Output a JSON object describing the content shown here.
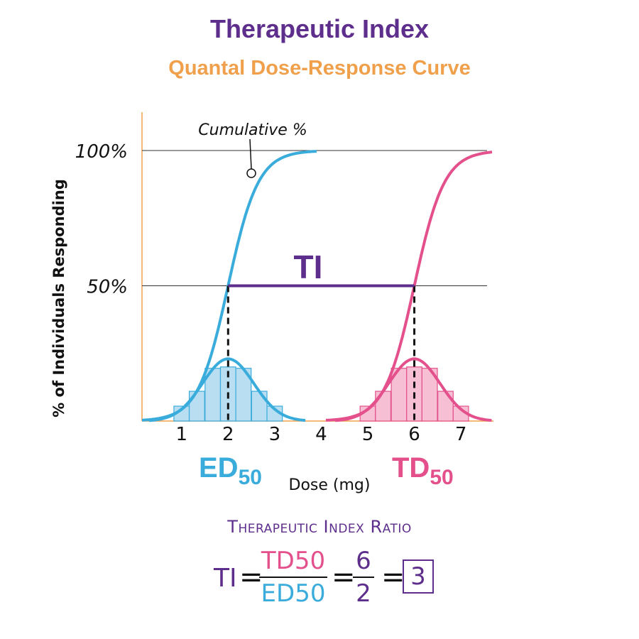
{
  "title": "Therapeutic Index",
  "subtitle": "Quantal Dose-Response Curve",
  "colors": {
    "purple": "#5e2e8c",
    "orange": "#f0a04b",
    "ed_blue": "#3aacdc",
    "td_pink": "#e3508b",
    "ed_fill": "#b9def2",
    "td_fill": "#f6bfd4"
  },
  "chart_data": {
    "type": "line",
    "xlabel": "Dose (mg)",
    "ylabel": "% of Individuals Responding",
    "x_ticks": [
      "1",
      "2",
      "3",
      "4",
      "5",
      "6",
      "7"
    ],
    "y_ticks": [
      "50%",
      "100%"
    ],
    "xlim": [
      0.15,
      7.7
    ],
    "ylim": [
      0,
      100
    ],
    "series": [
      {
        "name": "ED",
        "color": "#3aacdc",
        "midpoint": 2,
        "histogram_x": [
          1.0,
          1.33,
          1.67,
          2.0,
          2.33,
          2.67,
          3.0
        ],
        "histogram_pct": [
          5.5,
          11.0,
          19.5,
          20.0,
          19.5,
          11.0,
          5.5
        ]
      },
      {
        "name": "TD",
        "color": "#e3508b",
        "midpoint": 6,
        "histogram_x": [
          5.0,
          5.33,
          5.67,
          6.0,
          6.33,
          6.67,
          7.0
        ],
        "histogram_pct": [
          5.5,
          11.0,
          19.5,
          20.0,
          19.5,
          11.0,
          5.5
        ]
      }
    ],
    "annotations": {
      "cumulative": "Cumulative %",
      "ti": "TI",
      "ed_label": "ED",
      "td_label": "TD",
      "subscript": "50"
    }
  },
  "formula": {
    "heading": "Therapeutic Index Ratio",
    "lhs": "TI",
    "eq": "=",
    "numerator": "TD50",
    "denominator": "ED50",
    "num_value": "6",
    "den_value": "2",
    "result": "3"
  }
}
